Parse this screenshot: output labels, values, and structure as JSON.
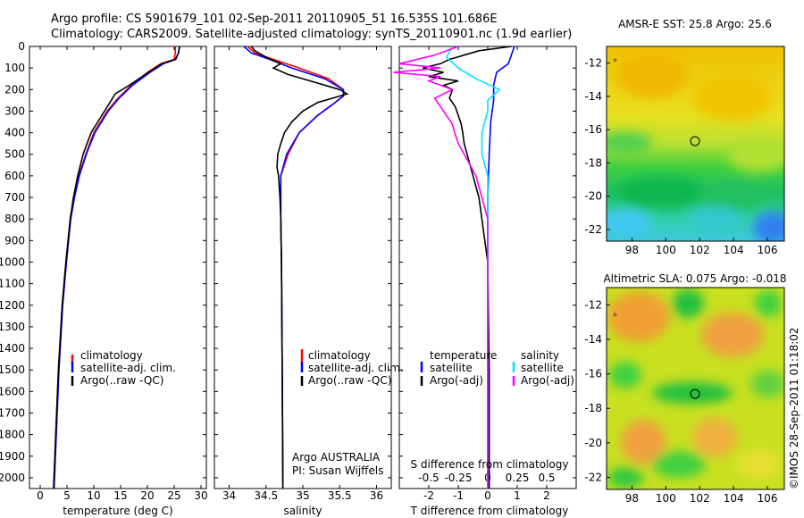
{
  "header": {
    "line1": "Argo profile: CS 5901679_101 02-Sep-2011 20110905_51 16.535S 101.686E",
    "line2": "Climatology: CARS2009. Satellite-adjusted climatology: synTS_20110901.nc (1.9d earlier)"
  },
  "side_text": "©IMOS 28-Sep-2011 01:18:02",
  "colors": {
    "climatology": "#ff0000",
    "satellite": "#0000ff",
    "argo": "#000000",
    "sat_salinity": "#00e5ff",
    "argo_salinity": "#ff00ff"
  },
  "chart_data": [
    {
      "id": "temperature",
      "type": "line",
      "xlabel": "temperature (deg C)",
      "ylabel": "",
      "xlim": [
        -2,
        31
      ],
      "ylim": [
        2050,
        0
      ],
      "xticks": [
        0,
        5,
        10,
        15,
        20,
        25,
        30
      ],
      "yticks": [
        0,
        100,
        200,
        300,
        400,
        500,
        600,
        700,
        800,
        900,
        1000,
        1100,
        1200,
        1300,
        1400,
        1500,
        1600,
        1700,
        1800,
        1900,
        2000
      ],
      "legend": [
        "climatology",
        "satellite-adj. clim.",
        "Argo(..raw -QC)"
      ],
      "series": [
        {
          "name": "climatology",
          "color": "#ff0000",
          "depth": [
            0,
            30,
            60,
            80,
            120,
            180,
            240,
            300,
            400,
            500,
            600,
            700,
            800,
            1000,
            1200,
            1500,
            1800,
            2050
          ],
          "values": [
            25.2,
            25.2,
            25.0,
            22.5,
            20.0,
            17.0,
            14.5,
            12.5,
            10.0,
            8.5,
            7.2,
            6.3,
            5.6,
            4.8,
            4.1,
            3.4,
            2.9,
            2.5
          ]
        },
        {
          "name": "satellite-adj. clim.",
          "color": "#0000ff",
          "depth": [
            0,
            30,
            60,
            80,
            120,
            180,
            240,
            300,
            400,
            500,
            600,
            700,
            800,
            1000,
            1200,
            1500,
            1800,
            2050
          ],
          "values": [
            26.0,
            25.8,
            25.3,
            23.0,
            20.5,
            17.2,
            14.7,
            12.7,
            10.2,
            8.6,
            7.3,
            6.4,
            5.7,
            4.9,
            4.2,
            3.5,
            3.0,
            2.6
          ]
        },
        {
          "name": "Argo(..raw -QC)",
          "color": "#000000",
          "depth": [
            0,
            30,
            60,
            80,
            120,
            180,
            220,
            260,
            300,
            400,
            500,
            600,
            700,
            800,
            1000,
            1200,
            1500,
            1800,
            2050
          ],
          "values": [
            26.0,
            25.8,
            25.2,
            22.7,
            20.2,
            16.6,
            14.0,
            13.0,
            12.0,
            9.5,
            8.0,
            7.0,
            6.2,
            5.6,
            4.8,
            4.1,
            3.4,
            2.9,
            2.5
          ]
        }
      ]
    },
    {
      "id": "salinity",
      "type": "line",
      "xlabel": "salinity",
      "xlim": [
        33.8,
        36.2
      ],
      "ylim": [
        2050,
        0
      ],
      "xticks": [
        34,
        34.5,
        35,
        35.5,
        36
      ],
      "yticks": [
        0,
        100,
        200,
        300,
        400,
        500,
        600,
        700,
        800,
        900,
        1000,
        1100,
        1200,
        1300,
        1400,
        1500,
        1600,
        1700,
        1800,
        1900,
        2000
      ],
      "legend": [
        "climatology",
        "satellite-adj. clim.",
        "Argo(..raw -QC)"
      ],
      "annotation": [
        "Argo AUSTRALIA",
        "PI: Susan Wijffels"
      ],
      "series": [
        {
          "name": "climatology",
          "color": "#ff0000",
          "depth": [
            0,
            30,
            60,
            100,
            150,
            200,
            230,
            270,
            320,
            400,
            500,
            600,
            700,
            800,
            1000,
            1500,
            2050
          ],
          "values": [
            34.25,
            34.35,
            34.6,
            34.95,
            35.35,
            35.55,
            35.55,
            35.4,
            35.2,
            34.95,
            34.8,
            34.7,
            34.7,
            34.7,
            34.71,
            34.72,
            34.73
          ]
        },
        {
          "name": "satellite-adj. clim.",
          "color": "#0000ff",
          "depth": [
            0,
            30,
            60,
            100,
            150,
            200,
            230,
            270,
            320,
            400,
            500,
            600,
            700,
            800,
            1000,
            1500,
            2050
          ],
          "values": [
            34.2,
            34.3,
            34.55,
            34.85,
            35.3,
            35.55,
            35.55,
            35.4,
            35.2,
            34.95,
            34.78,
            34.7,
            34.7,
            34.7,
            34.71,
            34.72,
            34.73
          ]
        },
        {
          "name": "Argo(..raw -QC)",
          "color": "#000000",
          "depth": [
            0,
            20,
            50,
            80,
            100,
            130,
            160,
            200,
            220,
            240,
            260,
            300,
            350,
            400,
            450,
            500,
            560,
            600,
            650,
            700,
            800,
            1000,
            1500,
            2050
          ],
          "values": [
            34.3,
            34.35,
            34.5,
            34.7,
            34.6,
            34.8,
            35.1,
            35.5,
            35.6,
            35.4,
            35.2,
            35.0,
            34.85,
            34.75,
            34.7,
            34.66,
            34.65,
            34.67,
            34.68,
            34.69,
            34.7,
            34.71,
            34.72,
            34.73
          ]
        }
      ]
    },
    {
      "id": "difference",
      "type": "line",
      "xlabel": "T difference from climatology",
      "xlabel_top": "S difference from climatology",
      "xlim": [
        -3,
        3
      ],
      "ylim": [
        2050,
        0
      ],
      "xticks": [
        -2,
        -1,
        0,
        1,
        2
      ],
      "xticks_s": [
        -0.5,
        -0.25,
        0,
        0.25,
        0.5
      ],
      "legend_left_title": "temperature",
      "legend_right_title": "salinity",
      "legend": [
        "satellite",
        "Argo(-adj)",
        "satellite",
        "Argo(-adj)"
      ],
      "series": [
        {
          "name": "temperature satellite",
          "color": "#0000ff",
          "depth": [
            0,
            40,
            80,
            120,
            180,
            250,
            350,
            500,
            700,
            1000,
            2050
          ],
          "values": [
            0.9,
            0.8,
            0.7,
            0.3,
            0.2,
            0.2,
            0.1,
            0.05,
            0.0,
            0.0,
            0.0
          ]
        },
        {
          "name": "temperature Argo(-adj)",
          "color": "#000000",
          "depth": [
            0,
            20,
            40,
            60,
            80,
            100,
            120,
            140,
            160,
            180,
            200,
            240,
            280,
            320,
            360,
            400,
            450,
            500,
            550,
            600,
            650,
            700,
            750,
            800,
            900,
            1000,
            1500,
            2050
          ],
          "values": [
            0.8,
            -0.3,
            -0.8,
            -1.3,
            -1.6,
            -2.2,
            -1.5,
            -2.0,
            -1.0,
            -1.5,
            -1.2,
            -1.3,
            -1.1,
            -1.0,
            -0.9,
            -0.85,
            -0.8,
            -0.7,
            -0.6,
            -0.5,
            -0.4,
            -0.3,
            -0.25,
            -0.2,
            -0.1,
            0.0,
            0.05,
            0.05
          ]
        },
        {
          "name": "salinity satellite",
          "color": "#00e5ff",
          "depth": [
            0,
            50,
            100,
            150,
            200,
            250,
            300,
            400,
            500,
            600,
            800,
            1000,
            2050
          ],
          "values": [
            -0.3,
            -0.35,
            -0.25,
            -0.1,
            0.1,
            0.0,
            0.0,
            -0.05,
            -0.05,
            0.0,
            0.0,
            0.0,
            0.0
          ]
        },
        {
          "name": "salinity Argo(-adj)",
          "color": "#ff00ff",
          "depth": [
            0,
            40,
            80,
            100,
            120,
            140,
            160,
            200,
            240,
            280,
            320,
            360,
            400,
            450,
            500,
            550,
            600,
            700,
            800,
            1000,
            2050
          ],
          "values": [
            -0.25,
            -0.45,
            -0.75,
            -0.4,
            -0.8,
            -0.4,
            -0.5,
            -0.3,
            -0.45,
            -0.4,
            -0.35,
            -0.3,
            -0.28,
            -0.25,
            -0.2,
            -0.15,
            -0.1,
            -0.05,
            0.0,
            0.0,
            0.0
          ]
        }
      ]
    },
    {
      "id": "sst-map",
      "type": "heatmap",
      "title": "AMSR-E SST: 25.8 Argo: 25.6",
      "xticks": [
        98,
        100,
        102,
        104,
        106
      ],
      "yticks": [
        -12,
        -14,
        -16,
        -18,
        -20,
        -22
      ],
      "xlim": [
        96.5,
        107
      ],
      "ylim": [
        -22.7,
        -11
      ],
      "marker": {
        "lon": 101.686,
        "lat": -16.535
      }
    },
    {
      "id": "sla-map",
      "type": "heatmap",
      "title": "Altimetric SLA: 0.075 Argo: -0.018",
      "xticks": [
        98,
        100,
        102,
        104,
        106
      ],
      "yticks": [
        -12,
        -14,
        -16,
        -18,
        -20,
        -22
      ],
      "xlim": [
        96.5,
        107
      ],
      "ylim": [
        -22.7,
        -11
      ],
      "marker": {
        "lon": 101.686,
        "lat": -16.535
      }
    }
  ]
}
